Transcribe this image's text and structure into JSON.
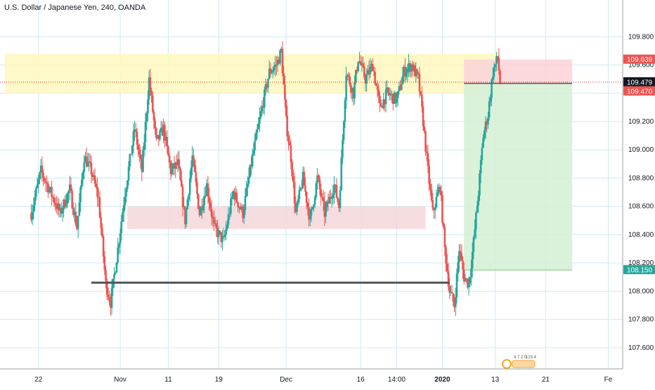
{
  "header": {
    "title": "U.S. Dollar / Japanese Yen, 240, OANDA"
  },
  "colors": {
    "up": "#26a69a",
    "down": "#ef5350",
    "grid": "#cfeaf3",
    "resistance_zone": "#fff7c2",
    "support_zone": "#f4d9dd",
    "target_zone": "#d6f0d6",
    "stop_zone": "#fbd5d8",
    "neckline": "#555555",
    "current_line": "#d32f2f"
  },
  "chart_data": {
    "type": "candlestick",
    "title": "U.S. Dollar / Japanese Yen, 240, OANDA",
    "y_ticks": [
      "109.800",
      "109.600",
      "109.400",
      "109.200",
      "109.000",
      "108.800",
      "108.600",
      "108.400",
      "108.200",
      "108.000",
      "107.800",
      "107.600"
    ],
    "y_tick_values": [
      109.8,
      109.6,
      109.4,
      109.2,
      109.0,
      108.8,
      108.6,
      108.4,
      108.2,
      108.0,
      107.8,
      107.6
    ],
    "ylim": [
      107.45,
      110.06
    ],
    "x_ticks": [
      {
        "label": "22",
        "pos": 3
      },
      {
        "label": "Nov",
        "pos": 37
      },
      {
        "label": "11",
        "pos": 57
      },
      {
        "label": "19",
        "pos": 78
      },
      {
        "label": "Dec",
        "pos": 106
      },
      {
        "label": "16",
        "pos": 137
      },
      {
        "label": "14:00",
        "pos": 152
      },
      {
        "label": "2020",
        "pos": 171
      },
      {
        "label": "13",
        "pos": 193
      },
      {
        "label": "21",
        "pos": 214
      },
      {
        "label": "Fe",
        "pos": 240
      }
    ],
    "xlim": [
      -13,
      246
    ],
    "price_labels": [
      {
        "text": "109.639",
        "value": 109.639,
        "color": "#ef5350"
      },
      {
        "text": "109.479",
        "value": 109.479,
        "color": "#131722"
      },
      {
        "text": "109.470",
        "value": 109.47,
        "color": "#ef5350"
      },
      {
        "text": "108.150",
        "value": 108.15,
        "color": "#26a69a"
      }
    ],
    "zones": {
      "resistance": {
        "x0": -11,
        "x1": 195,
        "y0": 109.4,
        "y1": 109.68
      },
      "support": {
        "x0": 40,
        "x1": 164,
        "y0": 108.44,
        "y1": 108.6
      },
      "neckline": {
        "x0": 25,
        "x1": 174,
        "y": 108.06
      },
      "stop": {
        "x0": 180,
        "x1": 225,
        "y0": 109.47,
        "y1": 109.639
      },
      "target": {
        "x0": 180,
        "x1": 225,
        "y0": 108.15,
        "y1": 109.47
      },
      "entry_price": 109.47,
      "current_price": 109.479
    },
    "anchors": [
      [
        0,
        108.55
      ],
      [
        4,
        108.85
      ],
      [
        8,
        108.7
      ],
      [
        12,
        108.55
      ],
      [
        16,
        108.72
      ],
      [
        19,
        108.45
      ],
      [
        22,
        108.95
      ],
      [
        25,
        108.85
      ],
      [
        28,
        108.65
      ],
      [
        31,
        108.05
      ],
      [
        33,
        107.92
      ],
      [
        36,
        108.3
      ],
      [
        39,
        108.7
      ],
      [
        43,
        109.15
      ],
      [
        46,
        108.85
      ],
      [
        49,
        109.5
      ],
      [
        52,
        109.05
      ],
      [
        55,
        109.15
      ],
      [
        58,
        108.85
      ],
      [
        61,
        108.9
      ],
      [
        64,
        108.5
      ],
      [
        67,
        108.95
      ],
      [
        70,
        108.55
      ],
      [
        73,
        108.75
      ],
      [
        76,
        108.45
      ],
      [
        80,
        108.35
      ],
      [
        84,
        108.7
      ],
      [
        88,
        108.55
      ],
      [
        92,
        108.95
      ],
      [
        96,
        109.3
      ],
      [
        99,
        109.55
      ],
      [
        102,
        109.6
      ],
      [
        104,
        109.7
      ],
      [
        106,
        109.2
      ],
      [
        108,
        108.95
      ],
      [
        110,
        108.55
      ],
      [
        113,
        108.8
      ],
      [
        116,
        108.5
      ],
      [
        119,
        108.8
      ],
      [
        122,
        108.55
      ],
      [
        126,
        108.75
      ],
      [
        128,
        108.6
      ],
      [
        131,
        109.55
      ],
      [
        134,
        109.4
      ],
      [
        136,
        109.65
      ],
      [
        139,
        109.5
      ],
      [
        142,
        109.6
      ],
      [
        145,
        109.3
      ],
      [
        148,
        109.4
      ],
      [
        152,
        109.35
      ],
      [
        155,
        109.55
      ],
      [
        158,
        109.6
      ],
      [
        161,
        109.5
      ],
      [
        163,
        109.2
      ],
      [
        165,
        108.85
      ],
      [
        167,
        108.55
      ],
      [
        170,
        108.75
      ],
      [
        172,
        108.3
      ],
      [
        174,
        108.0
      ],
      [
        176,
        107.9
      ],
      [
        178,
        108.3
      ],
      [
        180,
        108.1
      ],
      [
        182,
        108.05
      ],
      [
        184,
        108.35
      ],
      [
        186,
        108.7
      ],
      [
        188,
        109.1
      ],
      [
        190,
        109.25
      ],
      [
        192,
        109.55
      ],
      [
        194,
        109.65
      ],
      [
        195,
        109.48
      ]
    ],
    "grid": true
  }
}
